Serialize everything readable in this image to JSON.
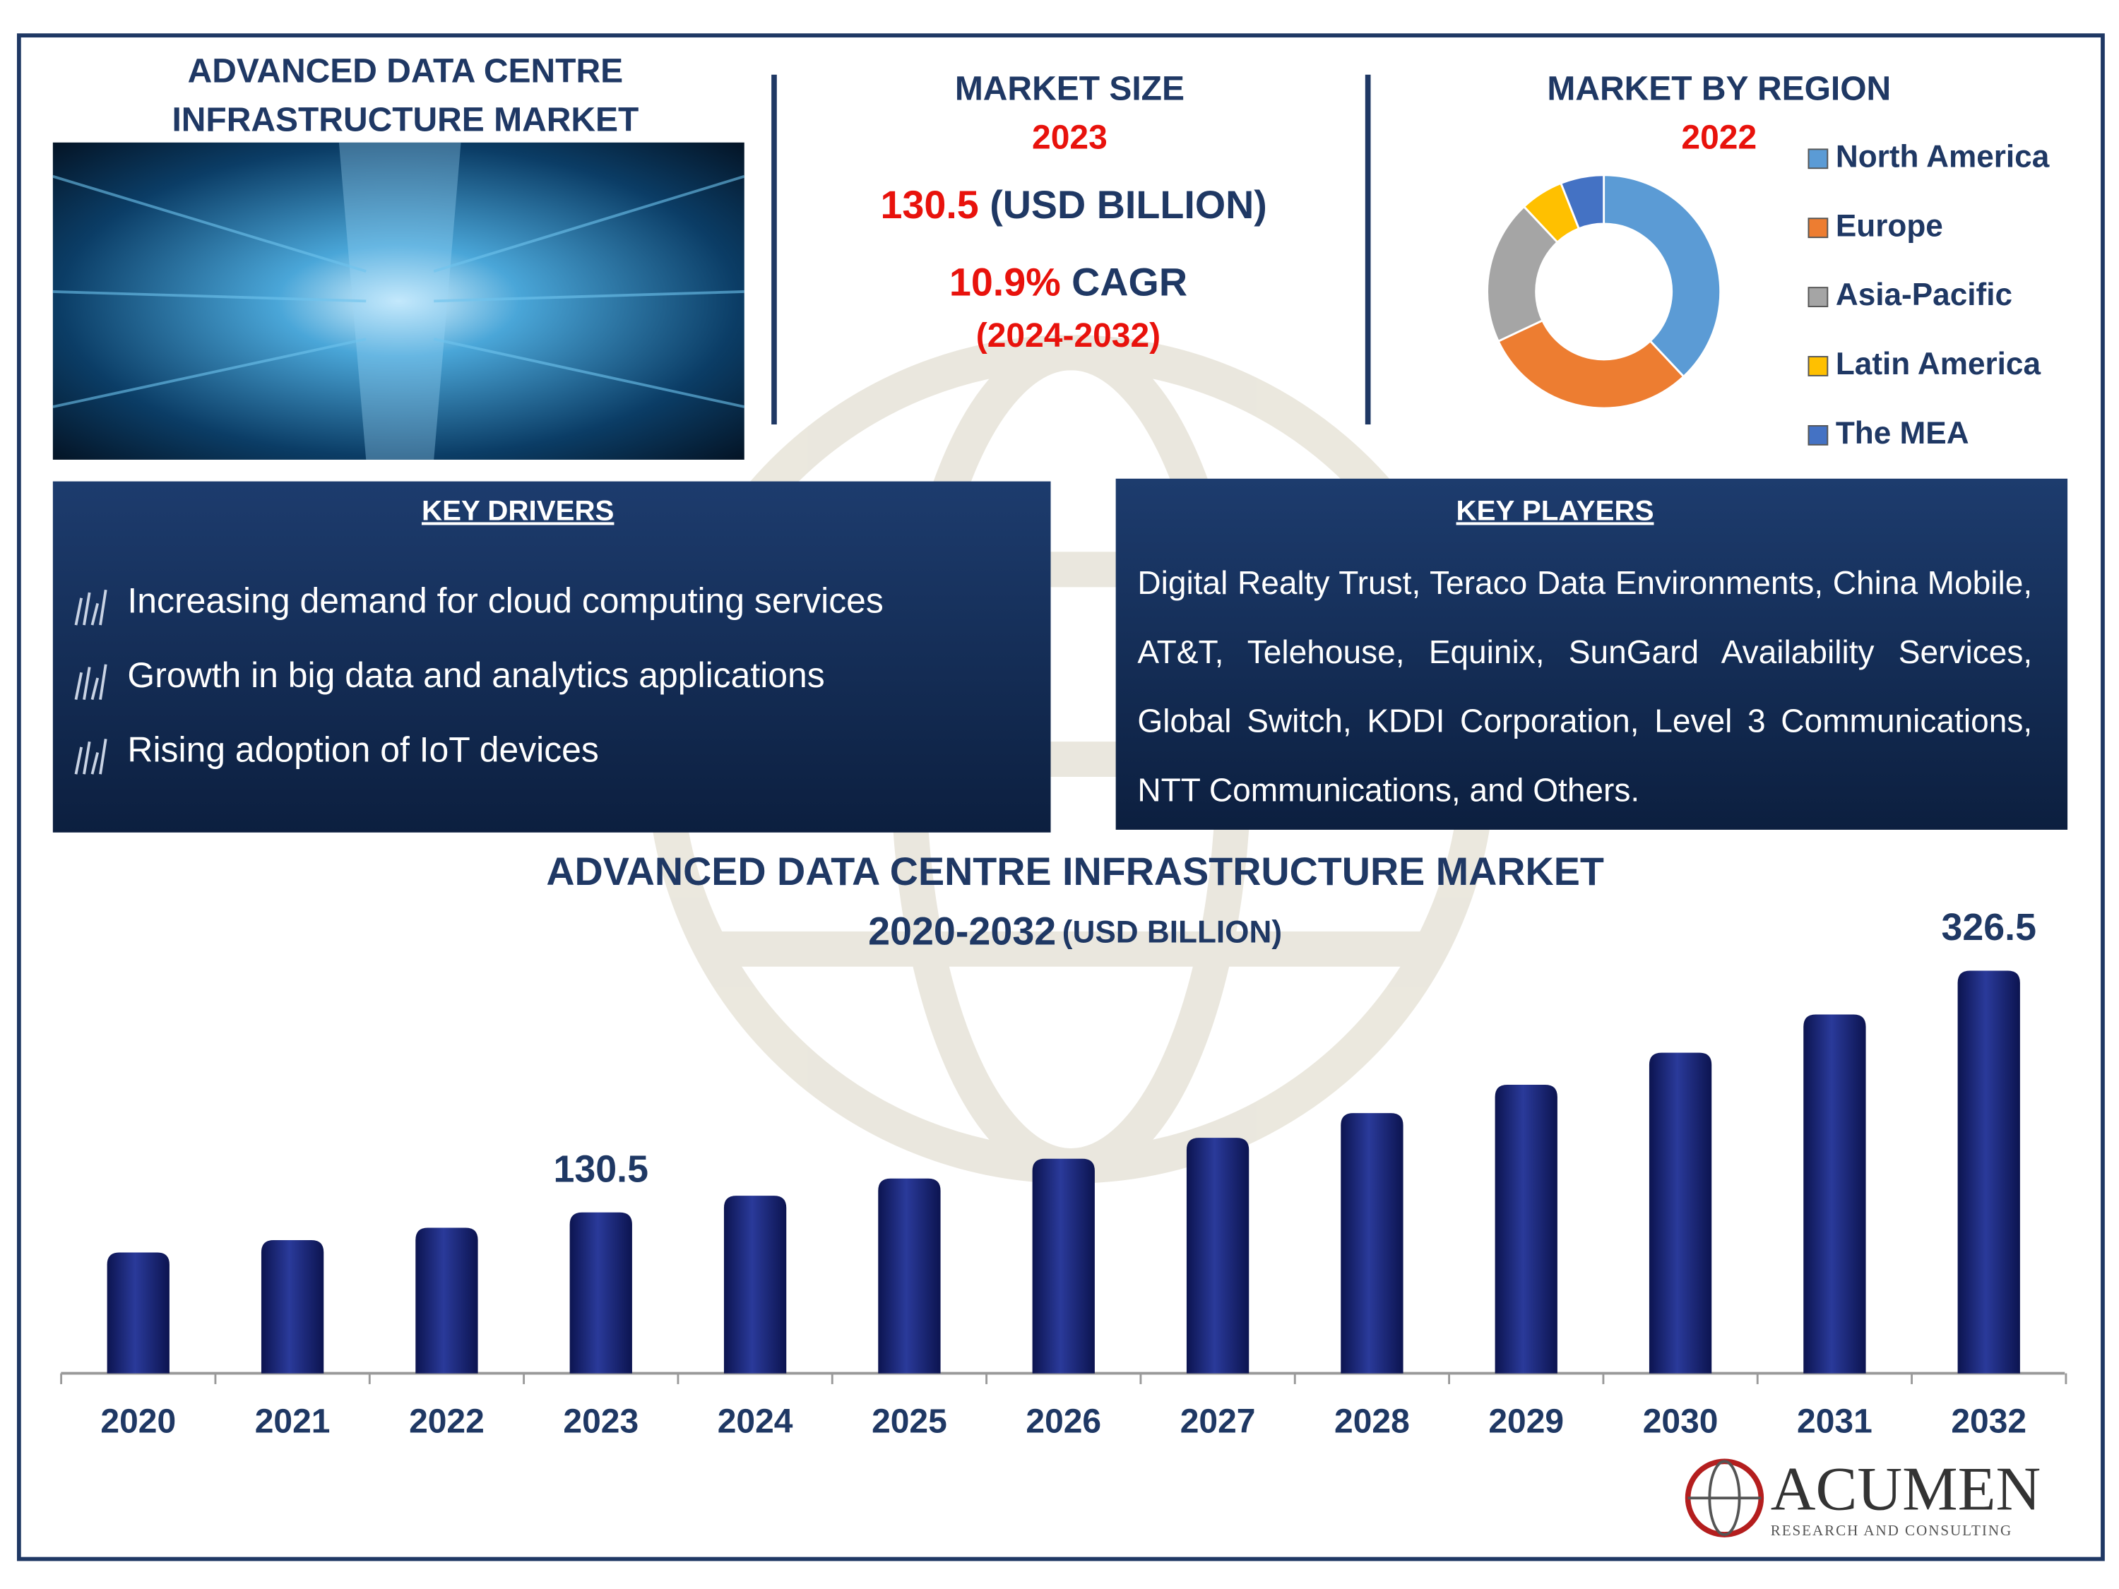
{
  "header": {
    "title_line1": "ADVANCED DATA CENTRE",
    "title_line2": "INFRASTRUCTURE MARKET"
  },
  "market_size": {
    "heading": "MARKET SIZE",
    "year": "2023",
    "value": "130.5",
    "unit": "(USD BILLION)",
    "cagr_value": "10.9%",
    "cagr_label": "CAGR",
    "period": "(2024-2032)"
  },
  "key_drivers": {
    "heading": "KEY DRIVERS",
    "items": [
      "Increasing demand for cloud computing services",
      "Growth in big data and analytics applications",
      "Rising adoption of IoT devices"
    ]
  },
  "key_players": {
    "heading": "KEY PLAYERS",
    "text": "Digital Realty Trust, Teraco Data Environments, China Mobile, AT&T, Telehouse, Equinix, SunGard Availability Services, Global Switch, KDDI Corporation, Level 3 Communications, NTT Communications, and  Others."
  },
  "logo": {
    "name": "ACUMEN",
    "tagline": "RESEARCH AND CONSULTING"
  },
  "chart_data": [
    {
      "type": "donut",
      "title": "MARKET BY REGION",
      "subtitle": "2022",
      "categories": [
        "North America",
        "Europe",
        "Asia-Pacific",
        "Latin America",
        "The MEA"
      ],
      "values": [
        38,
        30,
        20,
        6,
        6
      ],
      "colors": [
        "#5b9bd5",
        "#ed7d31",
        "#a5a5a5",
        "#ffc000",
        "#4472c4"
      ],
      "legend": "right"
    },
    {
      "type": "bar",
      "title": "ADVANCED DATA CENTRE INFRASTRUCTURE MARKET",
      "subtitle": "2020-2032",
      "unit": "(USD BILLION)",
      "categories": [
        "2020",
        "2021",
        "2022",
        "2023",
        "2024",
        "2025",
        "2026",
        "2027",
        "2028",
        "2029",
        "2030",
        "2031",
        "2032"
      ],
      "values": [
        98,
        108,
        118,
        130.5,
        144,
        158,
        174,
        191,
        211,
        234,
        260,
        291,
        326.5
      ],
      "value_labels": [
        null,
        null,
        null,
        "130.5",
        null,
        null,
        null,
        null,
        null,
        null,
        null,
        null,
        "326.5"
      ],
      "color": "#14206b"
    }
  ]
}
